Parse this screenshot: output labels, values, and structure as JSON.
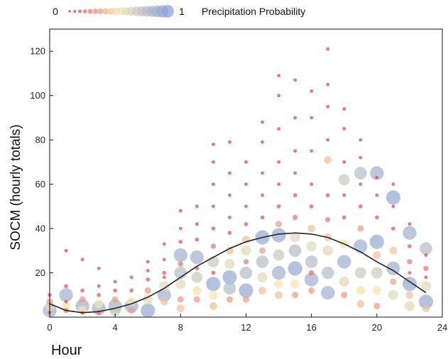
{
  "chart_data": {
    "type": "scatter",
    "title": "",
    "xlabel": "Hour",
    "ylabel": "SOCM (hourly totals)",
    "xlim": [
      0,
      24
    ],
    "ylim": [
      0,
      130
    ],
    "xticks": [
      0,
      4,
      8,
      12,
      16,
      20,
      24
    ],
    "yticks": [
      20,
      40,
      60,
      80,
      100,
      120
    ],
    "grid": false,
    "legend": {
      "placement": "top-left",
      "label": "Precipitation Probability",
      "min_label": "0",
      "max_label": "1",
      "colors": [
        "#d6304a",
        "#f0b98a",
        "#f3e6b3",
        "#c8d8ea",
        "#8fa3d4"
      ]
    },
    "colormap": {
      "low": "#d6304a",
      "mid": "#f3e6b3",
      "high": "#8fa3d4"
    },
    "series": [
      {
        "points": [
          {
            "x": 0,
            "y": 3,
            "p": 0.9
          },
          {
            "x": 0,
            "y": 5,
            "p": 0.6
          },
          {
            "x": 0,
            "y": 7,
            "p": 0.3
          },
          {
            "x": 0,
            "y": 10,
            "p": 0.1
          },
          {
            "x": 0,
            "y": 2,
            "p": 0.05
          },
          {
            "x": 1,
            "y": 10,
            "p": 0.9
          },
          {
            "x": 1,
            "y": 5,
            "p": 0.5
          },
          {
            "x": 1,
            "y": 3,
            "p": 0.2
          },
          {
            "x": 1,
            "y": 14,
            "p": 0.1
          },
          {
            "x": 1,
            "y": 30,
            "p": 0.05
          },
          {
            "x": 1,
            "y": 7,
            "p": 0.05
          },
          {
            "x": 2,
            "y": 5,
            "p": 0.9
          },
          {
            "x": 2,
            "y": 3,
            "p": 0.5
          },
          {
            "x": 2,
            "y": 8,
            "p": 0.3
          },
          {
            "x": 2,
            "y": 12,
            "p": 0.1
          },
          {
            "x": 2,
            "y": 26,
            "p": 0.05
          },
          {
            "x": 2,
            "y": 2,
            "p": 0.05
          },
          {
            "x": 3,
            "y": 4,
            "p": 0.9
          },
          {
            "x": 3,
            "y": 6,
            "p": 0.5
          },
          {
            "x": 3,
            "y": 2,
            "p": 0.2
          },
          {
            "x": 3,
            "y": 10,
            "p": 0.1
          },
          {
            "x": 3,
            "y": 22,
            "p": 0.05
          },
          {
            "x": 3,
            "y": 14,
            "p": 0.05
          },
          {
            "x": 4,
            "y": 5,
            "p": 0.9
          },
          {
            "x": 4,
            "y": 3,
            "p": 0.7
          },
          {
            "x": 4,
            "y": 8,
            "p": 0.3
          },
          {
            "x": 4,
            "y": 12,
            "p": 0.1
          },
          {
            "x": 4,
            "y": 16,
            "p": 0.05
          },
          {
            "x": 5,
            "y": 5,
            "p": 0.9
          },
          {
            "x": 5,
            "y": 7,
            "p": 0.5
          },
          {
            "x": 5,
            "y": 3,
            "p": 0.3
          },
          {
            "x": 5,
            "y": 12,
            "p": 0.1
          },
          {
            "x": 5,
            "y": 18,
            "p": 0.05
          },
          {
            "x": 6,
            "y": 3,
            "p": 0.95
          },
          {
            "x": 6,
            "y": 8,
            "p": 0.6
          },
          {
            "x": 6,
            "y": 12,
            "p": 0.3
          },
          {
            "x": 6,
            "y": 17,
            "p": 0.1
          },
          {
            "x": 6,
            "y": 25,
            "p": 0.05
          },
          {
            "x": 6,
            "y": 21,
            "p": 0.05
          },
          {
            "x": 7,
            "y": 10,
            "p": 0.9
          },
          {
            "x": 7,
            "y": 14,
            "p": 0.6
          },
          {
            "x": 7,
            "y": 7,
            "p": 0.4
          },
          {
            "x": 7,
            "y": 20,
            "p": 0.1
          },
          {
            "x": 7,
            "y": 26,
            "p": 0.05
          },
          {
            "x": 7,
            "y": 33,
            "p": 0.05
          },
          {
            "x": 7,
            "y": 18,
            "p": 0.05
          },
          {
            "x": 8,
            "y": 28,
            "p": 0.9
          },
          {
            "x": 8,
            "y": 20,
            "p": 0.8
          },
          {
            "x": 8,
            "y": 15,
            "p": 0.6
          },
          {
            "x": 8,
            "y": 8,
            "p": 0.3
          },
          {
            "x": 8,
            "y": 24,
            "p": 0.2
          },
          {
            "x": 8,
            "y": 34,
            "p": 0.1
          },
          {
            "x": 8,
            "y": 40,
            "p": 0.05
          },
          {
            "x": 8,
            "y": 48,
            "p": 0.05
          },
          {
            "x": 8,
            "y": 4,
            "p": 0.4
          },
          {
            "x": 9,
            "y": 27,
            "p": 0.9
          },
          {
            "x": 9,
            "y": 18,
            "p": 0.7
          },
          {
            "x": 9,
            "y": 12,
            "p": 0.5
          },
          {
            "x": 9,
            "y": 8,
            "p": 0.3
          },
          {
            "x": 9,
            "y": 35,
            "p": 0.1
          },
          {
            "x": 9,
            "y": 42,
            "p": 0.05
          },
          {
            "x": 9,
            "y": 50,
            "p": 0.05
          },
          {
            "x": 9,
            "y": 22,
            "p": 0.1
          },
          {
            "x": 10,
            "y": 15,
            "p": 0.95
          },
          {
            "x": 10,
            "y": 25,
            "p": 0.7
          },
          {
            "x": 10,
            "y": 10,
            "p": 0.5
          },
          {
            "x": 10,
            "y": 5,
            "p": 0.4
          },
          {
            "x": 10,
            "y": 32,
            "p": 0.2
          },
          {
            "x": 10,
            "y": 40,
            "p": 0.1
          },
          {
            "x": 10,
            "y": 50,
            "p": 0.05
          },
          {
            "x": 10,
            "y": 60,
            "p": 0.05
          },
          {
            "x": 10,
            "y": 70,
            "p": 0.05
          },
          {
            "x": 10,
            "y": 78,
            "p": 0.05
          },
          {
            "x": 10,
            "y": 20,
            "p": 0.1
          },
          {
            "x": 11,
            "y": 18,
            "p": 0.95
          },
          {
            "x": 11,
            "y": 13,
            "p": 0.8
          },
          {
            "x": 11,
            "y": 24,
            "p": 0.6
          },
          {
            "x": 11,
            "y": 30,
            "p": 0.4
          },
          {
            "x": 11,
            "y": 8,
            "p": 0.3
          },
          {
            "x": 11,
            "y": 38,
            "p": 0.1
          },
          {
            "x": 11,
            "y": 45,
            "p": 0.05
          },
          {
            "x": 11,
            "y": 55,
            "p": 0.05
          },
          {
            "x": 11,
            "y": 65,
            "p": 0.05
          },
          {
            "x": 11,
            "y": 79,
            "p": 0.05
          },
          {
            "x": 12,
            "y": 12,
            "p": 0.95
          },
          {
            "x": 12,
            "y": 20,
            "p": 0.8
          },
          {
            "x": 12,
            "y": 30,
            "p": 0.6
          },
          {
            "x": 12,
            "y": 35,
            "p": 0.4
          },
          {
            "x": 12,
            "y": 8,
            "p": 0.3
          },
          {
            "x": 12,
            "y": 42,
            "p": 0.1
          },
          {
            "x": 12,
            "y": 50,
            "p": 0.05
          },
          {
            "x": 12,
            "y": 60,
            "p": 0.05
          },
          {
            "x": 12,
            "y": 70,
            "p": 0.05
          },
          {
            "x": 12,
            "y": 25,
            "p": 0.2
          },
          {
            "x": 13,
            "y": 36,
            "p": 0.95
          },
          {
            "x": 13,
            "y": 25,
            "p": 0.8
          },
          {
            "x": 13,
            "y": 18,
            "p": 0.6
          },
          {
            "x": 13,
            "y": 12,
            "p": 0.4
          },
          {
            "x": 13,
            "y": 30,
            "p": 0.3
          },
          {
            "x": 13,
            "y": 45,
            "p": 0.1
          },
          {
            "x": 13,
            "y": 55,
            "p": 0.05
          },
          {
            "x": 13,
            "y": 65,
            "p": 0.05
          },
          {
            "x": 13,
            "y": 79,
            "p": 0.05
          },
          {
            "x": 13,
            "y": 88,
            "p": 0.05
          },
          {
            "x": 14,
            "y": 37,
            "p": 0.95
          },
          {
            "x": 14,
            "y": 20,
            "p": 0.9
          },
          {
            "x": 14,
            "y": 28,
            "p": 0.7
          },
          {
            "x": 14,
            "y": 15,
            "p": 0.5
          },
          {
            "x": 14,
            "y": 42,
            "p": 0.3
          },
          {
            "x": 14,
            "y": 50,
            "p": 0.1
          },
          {
            "x": 14,
            "y": 60,
            "p": 0.05
          },
          {
            "x": 14,
            "y": 70,
            "p": 0.05
          },
          {
            "x": 14,
            "y": 85,
            "p": 0.05
          },
          {
            "x": 14,
            "y": 100,
            "p": 0.05
          },
          {
            "x": 14,
            "y": 109,
            "p": 0.05
          },
          {
            "x": 14,
            "y": 10,
            "p": 0.4
          },
          {
            "x": 15,
            "y": 22,
            "p": 0.95
          },
          {
            "x": 15,
            "y": 30,
            "p": 0.8
          },
          {
            "x": 15,
            "y": 36,
            "p": 0.6
          },
          {
            "x": 15,
            "y": 15,
            "p": 0.5
          },
          {
            "x": 15,
            "y": 45,
            "p": 0.2
          },
          {
            "x": 15,
            "y": 55,
            "p": 0.1
          },
          {
            "x": 15,
            "y": 65,
            "p": 0.05
          },
          {
            "x": 15,
            "y": 75,
            "p": 0.05
          },
          {
            "x": 15,
            "y": 90,
            "p": 0.05
          },
          {
            "x": 15,
            "y": 107,
            "p": 0.05
          },
          {
            "x": 15,
            "y": 10,
            "p": 0.3
          },
          {
            "x": 16,
            "y": 17,
            "p": 0.9
          },
          {
            "x": 16,
            "y": 25,
            "p": 0.8
          },
          {
            "x": 16,
            "y": 32,
            "p": 0.6
          },
          {
            "x": 16,
            "y": 40,
            "p": 0.4
          },
          {
            "x": 16,
            "y": 12,
            "p": 0.3
          },
          {
            "x": 16,
            "y": 50,
            "p": 0.1
          },
          {
            "x": 16,
            "y": 60,
            "p": 0.05
          },
          {
            "x": 16,
            "y": 75,
            "p": 0.05
          },
          {
            "x": 16,
            "y": 90,
            "p": 0.05
          },
          {
            "x": 16,
            "y": 102,
            "p": 0.05
          },
          {
            "x": 16,
            "y": 20,
            "p": 0.2
          },
          {
            "x": 17,
            "y": 11,
            "p": 0.9
          },
          {
            "x": 17,
            "y": 20,
            "p": 0.8
          },
          {
            "x": 17,
            "y": 30,
            "p": 0.6
          },
          {
            "x": 17,
            "y": 36,
            "p": 0.4
          },
          {
            "x": 17,
            "y": 44,
            "p": 0.2
          },
          {
            "x": 17,
            "y": 55,
            "p": 0.1
          },
          {
            "x": 17,
            "y": 71,
            "p": 0.4
          },
          {
            "x": 17,
            "y": 80,
            "p": 0.05
          },
          {
            "x": 17,
            "y": 95,
            "p": 0.05
          },
          {
            "x": 17,
            "y": 105,
            "p": 0.05
          },
          {
            "x": 17,
            "y": 121,
            "p": 0.05
          },
          {
            "x": 18,
            "y": 62,
            "p": 0.7
          },
          {
            "x": 18,
            "y": 25,
            "p": 0.9
          },
          {
            "x": 18,
            "y": 16,
            "p": 0.6
          },
          {
            "x": 18,
            "y": 33,
            "p": 0.5
          },
          {
            "x": 18,
            "y": 10,
            "p": 0.3
          },
          {
            "x": 18,
            "y": 45,
            "p": 0.1
          },
          {
            "x": 18,
            "y": 55,
            "p": 0.05
          },
          {
            "x": 18,
            "y": 70,
            "p": 0.05
          },
          {
            "x": 18,
            "y": 85,
            "p": 0.05
          },
          {
            "x": 18,
            "y": 94,
            "p": 0.05
          },
          {
            "x": 19,
            "y": 65,
            "p": 0.8
          },
          {
            "x": 19,
            "y": 32,
            "p": 0.9
          },
          {
            "x": 19,
            "y": 20,
            "p": 0.7
          },
          {
            "x": 19,
            "y": 12,
            "p": 0.5
          },
          {
            "x": 19,
            "y": 40,
            "p": 0.3
          },
          {
            "x": 19,
            "y": 50,
            "p": 0.1
          },
          {
            "x": 19,
            "y": 60,
            "p": 0.05
          },
          {
            "x": 19,
            "y": 72,
            "p": 0.05
          },
          {
            "x": 19,
            "y": 80,
            "p": 0.05
          },
          {
            "x": 19,
            "y": 6,
            "p": 0.4
          },
          {
            "x": 20,
            "y": 65,
            "p": 0.9
          },
          {
            "x": 20,
            "y": 34,
            "p": 0.95
          },
          {
            "x": 20,
            "y": 20,
            "p": 0.7
          },
          {
            "x": 20,
            "y": 12,
            "p": 0.5
          },
          {
            "x": 20,
            "y": 28,
            "p": 0.4
          },
          {
            "x": 20,
            "y": 45,
            "p": 0.1
          },
          {
            "x": 20,
            "y": 55,
            "p": 0.05
          },
          {
            "x": 20,
            "y": 63,
            "p": 0.05
          },
          {
            "x": 20,
            "y": 5,
            "p": 0.3
          },
          {
            "x": 21,
            "y": 54,
            "p": 0.95
          },
          {
            "x": 21,
            "y": 22,
            "p": 0.9
          },
          {
            "x": 21,
            "y": 10,
            "p": 0.6
          },
          {
            "x": 21,
            "y": 30,
            "p": 0.4
          },
          {
            "x": 21,
            "y": 40,
            "p": 0.1
          },
          {
            "x": 21,
            "y": 50,
            "p": 0.05
          },
          {
            "x": 21,
            "y": 60,
            "p": 0.05
          },
          {
            "x": 21,
            "y": 16,
            "p": 0.3
          },
          {
            "x": 22,
            "y": 38,
            "p": 0.9
          },
          {
            "x": 22,
            "y": 15,
            "p": 0.95
          },
          {
            "x": 22,
            "y": 5,
            "p": 0.6
          },
          {
            "x": 22,
            "y": 10,
            "p": 0.4
          },
          {
            "x": 22,
            "y": 25,
            "p": 0.2
          },
          {
            "x": 22,
            "y": 32,
            "p": 0.1
          },
          {
            "x": 22,
            "y": 42,
            "p": 0.05
          },
          {
            "x": 22,
            "y": 20,
            "p": 0.05
          },
          {
            "x": 23,
            "y": 31,
            "p": 0.8
          },
          {
            "x": 23,
            "y": 7,
            "p": 0.95
          },
          {
            "x": 23,
            "y": 14,
            "p": 0.6
          },
          {
            "x": 23,
            "y": 4,
            "p": 0.4
          },
          {
            "x": 23,
            "y": 22,
            "p": 0.2
          },
          {
            "x": 23,
            "y": 28,
            "p": 0.05
          },
          {
            "x": 23,
            "y": 18,
            "p": 0.05
          }
        ]
      }
    ],
    "trend_line": {
      "x": [
        0,
        1,
        2,
        3,
        4,
        5,
        6,
        7,
        8,
        9,
        10,
        11,
        12,
        13,
        14,
        15,
        16,
        17,
        18,
        19,
        20,
        21,
        22,
        23
      ],
      "y": [
        6,
        3,
        2,
        2.5,
        4,
        6,
        9,
        13,
        18,
        23,
        27,
        31,
        34,
        36,
        37.5,
        38,
        37.5,
        36,
        33,
        29.5,
        25,
        21,
        16,
        11
      ]
    }
  }
}
